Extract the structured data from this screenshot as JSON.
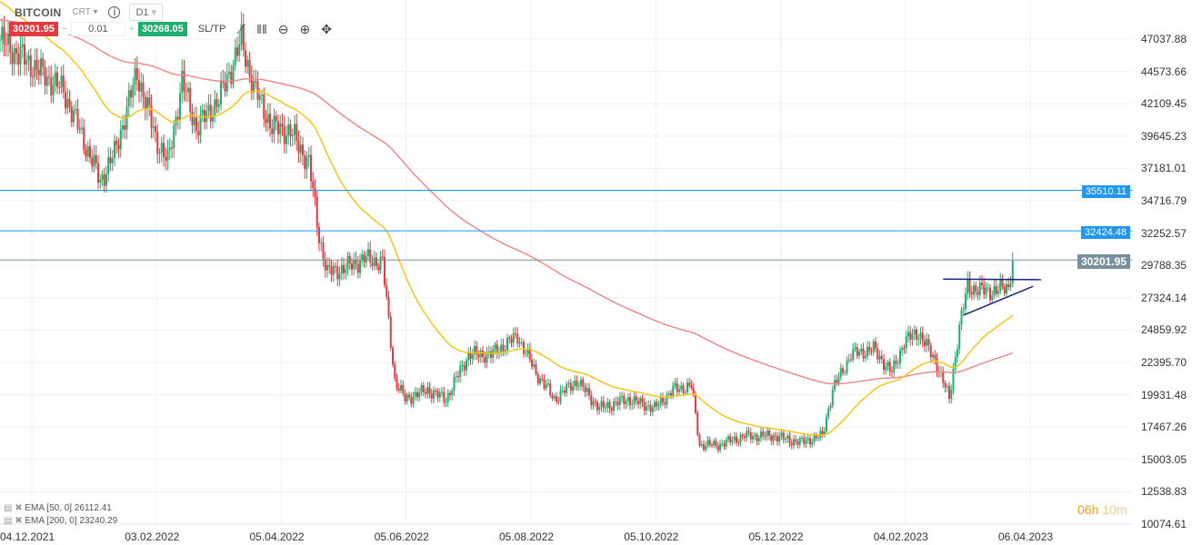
{
  "header": {
    "symbol": "BITCOIN",
    "account_type": "CRT",
    "timeframe": "D1",
    "info_icon": "info-icon"
  },
  "trade": {
    "sell_price": "30201.95",
    "quantity": "0.01",
    "minus": "−",
    "plus": "+",
    "buy_price": "30268.05",
    "sltp_label": "SL/TP"
  },
  "toolbar_icons": [
    "line-chart-icon",
    "candles-icon",
    "zoom-out-icon",
    "zoom-in-icon",
    "move-icon"
  ],
  "countdown": {
    "hours": "06h",
    "minutes": "10m"
  },
  "indicators": [
    {
      "label": "EMA [50, 0] 26112.41",
      "color": "#f5c518"
    },
    {
      "label": "EMA [200, 0] 23240.29",
      "color": "#f08a8a"
    }
  ],
  "colors": {
    "up": "#1fae6c",
    "down": "#e5393f",
    "levels": "#2196f3",
    "current": "#78909c",
    "trendlines": "#1a237e"
  },
  "chart_data": {
    "type": "candlestick",
    "y_ticks": [
      "47037.88",
      "44573.66",
      "42109.45",
      "39645.23",
      "37181.01",
      "34716.79",
      "32252.57",
      "29788.35",
      "27324.14",
      "24859.92",
      "22395.70",
      "19931.48",
      "17467.26",
      "15003.05",
      "12538.83",
      "10074.61"
    ],
    "ylim": [
      10074.61,
      47037.88
    ],
    "x_ticks": [
      "04.12.2021",
      "03.02.2022",
      "05.04.2022",
      "05.06.2022",
      "05.08.2022",
      "05.10.2022",
      "05.12.2022",
      "04.02.2023",
      "06.04.2023"
    ],
    "grid": true,
    "close_path": [
      [
        "2021-12-04",
        47000
      ],
      [
        "2022-01-04",
        43100
      ],
      [
        "2022-01-22",
        36200
      ],
      [
        "2022-01-29",
        38300
      ],
      [
        "2022-02-09",
        44500
      ],
      [
        "2022-02-18",
        39600
      ],
      [
        "2022-02-24",
        37600
      ],
      [
        "2022-03-03",
        43800
      ],
      [
        "2022-03-10",
        40300
      ],
      [
        "2022-03-21",
        42400
      ],
      [
        "2022-04-01",
        46900
      ],
      [
        "2022-04-07",
        43400
      ],
      [
        "2022-04-16",
        40300
      ],
      [
        "2022-04-25",
        40000
      ],
      [
        "2022-05-04",
        37600
      ],
      [
        "2022-05-09",
        32000
      ],
      [
        "2022-05-13",
        29250
      ],
      [
        "2022-05-22",
        29600
      ],
      [
        "2022-05-31",
        30300
      ],
      [
        "2022-06-09",
        30000
      ],
      [
        "2022-06-15",
        21000
      ],
      [
        "2022-06-20",
        19600
      ],
      [
        "2022-07-01",
        20300
      ],
      [
        "2022-07-10",
        19600
      ],
      [
        "2022-07-21",
        23000
      ],
      [
        "2022-08-01",
        23000
      ],
      [
        "2022-08-14",
        24400
      ],
      [
        "2022-08-23",
        21600
      ],
      [
        "2022-09-01",
        19600
      ],
      [
        "2022-09-12",
        21000
      ],
      [
        "2022-09-23",
        18900
      ],
      [
        "2022-10-07",
        19600
      ],
      [
        "2022-10-20",
        18900
      ],
      [
        "2022-10-29",
        20300
      ],
      [
        "2022-11-07",
        20600
      ],
      [
        "2022-11-11",
        16100
      ],
      [
        "2022-11-20",
        16100
      ],
      [
        "2022-12-03",
        16800
      ],
      [
        "2022-12-17",
        16800
      ],
      [
        "2022-12-30",
        16300
      ],
      [
        "2023-01-10",
        16800
      ],
      [
        "2023-01-15",
        20300
      ],
      [
        "2023-01-24",
        23000
      ],
      [
        "2023-02-04",
        23400
      ],
      [
        "2023-02-13",
        21600
      ],
      [
        "2023-02-19",
        24000
      ],
      [
        "2023-02-26",
        24700
      ],
      [
        "2023-03-07",
        22300
      ],
      [
        "2023-03-13",
        19600
      ],
      [
        "2023-03-18",
        25100
      ],
      [
        "2023-03-22",
        28200
      ],
      [
        "2023-03-29",
        27850
      ],
      [
        "2023-04-05",
        27850
      ],
      [
        "2023-04-11",
        28200
      ],
      [
        "2023-04-13",
        30201.95
      ]
    ],
    "ema50_start": 50000,
    "ema200_start": 48500,
    "levels": [
      {
        "value": 35510.11,
        "label": "35510.11"
      },
      {
        "value": 32424.48,
        "label": "32424.48"
      }
    ],
    "current_price": {
      "value": 30201.95,
      "label": "30201.95"
    },
    "trendlines": [
      [
        [
          "2023-03-10",
          28750
        ],
        [
          "2023-04-27",
          28700
        ]
      ],
      [
        [
          "2023-03-20",
          26000
        ],
        [
          "2023-04-23",
          28200
        ]
      ]
    ]
  }
}
